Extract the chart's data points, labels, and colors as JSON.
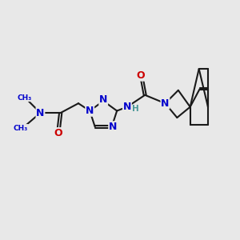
{
  "bg_color": "#e8e8e8",
  "bond_color": "#1a1a1a",
  "bond_lw": 1.5,
  "atom_N_color": "#0000cc",
  "atom_O_color": "#cc0000",
  "atom_H_color": "#4a9898",
  "figsize": [
    3.0,
    3.0
  ],
  "dpi": 100,
  "xlim": [
    0,
    10
  ],
  "ylim": [
    0,
    10
  ]
}
